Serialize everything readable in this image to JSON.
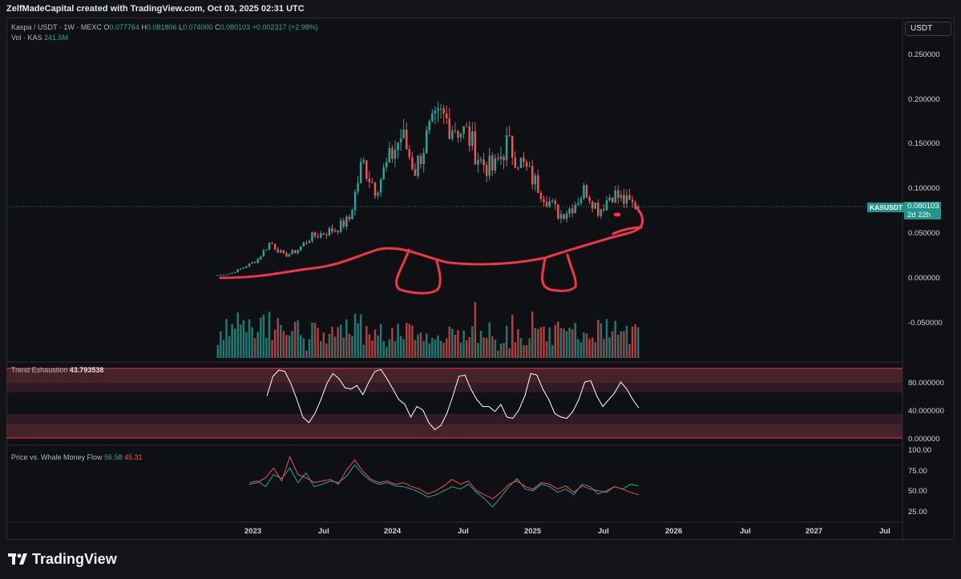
{
  "header": {
    "attribution": "ZelfMadeCapital created with TradingView.com, Oct 03, 2025 02:31 UTC"
  },
  "symbol_legend": {
    "symbol": "Kaspa / USDT · 1W · MEXC",
    "open_label": "O",
    "open": "0.077764",
    "high_label": "H",
    "high": "0.081806",
    "low_label": "L",
    "low": "0.074000",
    "close_label": "C",
    "close": "0.080103",
    "change": "+0.002317 (+2.98%)",
    "volume_label": "Vol · KAS",
    "volume": "241.5M"
  },
  "currency_button": "USDT",
  "price_tag": {
    "symbol": "KASUSDT",
    "price": "0.080103",
    "countdown": "2d 22h"
  },
  "indicators": {
    "trend_exhaustion": {
      "name": "Trend Exhaustion",
      "value": "43.793538"
    },
    "whale_flow": {
      "name": "Price vs. Whale Money Flow",
      "value_green": "56.58",
      "value_red": "45.31"
    }
  },
  "footer": {
    "brand": "TradingView"
  },
  "colors": {
    "up": "#26a69a",
    "down": "#ef5350",
    "drawing": "#f23645",
    "background": "#0f1014",
    "tag": "#22968b"
  },
  "chart_data": [
    {
      "type": "candlestick",
      "title": "Kaspa / USDT · 1W · MEXC",
      "x_ticks": [
        "2023",
        "Jul",
        "2024",
        "Jul",
        "2025",
        "Jul",
        "2026",
        "Jul",
        "2027",
        "Jul"
      ],
      "y_ticks": [
        "0.250000",
        "0.200000",
        "0.150000",
        "0.100000",
        "0.050000",
        "0.000000",
        "-0.050000"
      ],
      "ylim": [
        -0.095,
        0.29
      ],
      "last_price": 0.080103,
      "approx_close_path": [
        [
          "2022-11",
          0.003
        ],
        [
          "2023-01",
          0.005
        ],
        [
          "2023-03",
          0.012
        ],
        [
          "2023-04",
          0.02
        ],
        [
          "2023-05",
          0.04
        ],
        [
          "2023-06",
          0.025
        ],
        [
          "2023-07",
          0.03
        ],
        [
          "2023-08",
          0.045
        ],
        [
          "2023-09",
          0.05
        ],
        [
          "2023-10",
          0.055
        ],
        [
          "2023-11",
          0.065
        ],
        [
          "2023-12",
          0.13
        ],
        [
          "2024-01",
          0.1
        ],
        [
          "2024-02",
          0.13
        ],
        [
          "2024-03",
          0.16
        ],
        [
          "2024-04",
          0.12
        ],
        [
          "2024-05",
          0.16
        ],
        [
          "2024-06",
          0.18
        ],
        [
          "2024-07",
          0.17
        ],
        [
          "2024-08",
          0.16
        ],
        [
          "2024-09",
          0.13
        ],
        [
          "2024-10",
          0.12
        ],
        [
          "2024-11",
          0.15
        ],
        [
          "2024-12",
          0.13
        ],
        [
          "2025-01",
          0.11
        ],
        [
          "2025-02",
          0.09
        ],
        [
          "2025-03",
          0.07
        ],
        [
          "2025-04",
          0.08
        ],
        [
          "2025-05",
          0.1
        ],
        [
          "2025-06",
          0.075
        ],
        [
          "2025-07",
          0.095
        ],
        [
          "2025-08",
          0.085
        ],
        [
          "2025-09",
          0.08
        ]
      ]
    },
    {
      "type": "line",
      "title": "Trend Exhaustion",
      "y_ticks": [
        "80.000000",
        "40.000000",
        "0.000000"
      ],
      "last_value": 43.793538,
      "values": [
        60,
        88,
        97,
        95,
        78,
        55,
        30,
        22,
        35,
        55,
        78,
        92,
        85,
        72,
        70,
        75,
        62,
        80,
        95,
        98,
        85,
        70,
        55,
        48,
        30,
        45,
        40,
        22,
        12,
        18,
        35,
        60,
        88,
        90,
        70,
        55,
        45,
        45,
        38,
        48,
        30,
        28,
        40,
        60,
        92,
        90,
        70,
        55,
        35,
        30,
        28,
        38,
        55,
        80,
        82,
        60,
        45,
        55,
        65,
        80,
        70,
        55,
        43
      ]
    },
    {
      "type": "line",
      "title": "Price vs. Whale Money Flow",
      "y_ticks": [
        "100.00",
        "75.00",
        "50.00",
        "25.00"
      ],
      "series": [
        {
          "name": "Price",
          "last": 56.58,
          "values": [
            60,
            62,
            55,
            70,
            65,
            78,
            60,
            72,
            55,
            58,
            62,
            60,
            68,
            82,
            70,
            62,
            58,
            60,
            56,
            55,
            52,
            48,
            42,
            45,
            50,
            55,
            52,
            58,
            48,
            40,
            30,
            42,
            55,
            65,
            52,
            50,
            58,
            55,
            48,
            52,
            45,
            58,
            55,
            46,
            50,
            55,
            52,
            58,
            56
          ]
        },
        {
          "name": "Whale Money Flow",
          "last": 45.31,
          "values": [
            58,
            60,
            66,
            78,
            62,
            92,
            70,
            66,
            60,
            62,
            64,
            58,
            76,
            88,
            74,
            64,
            60,
            62,
            58,
            60,
            55,
            52,
            46,
            50,
            56,
            64,
            58,
            62,
            50,
            45,
            40,
            48,
            58,
            62,
            55,
            52,
            60,
            58,
            52,
            56,
            48,
            56,
            52,
            50,
            48,
            55,
            52,
            48,
            45
          ]
        }
      ]
    }
  ]
}
